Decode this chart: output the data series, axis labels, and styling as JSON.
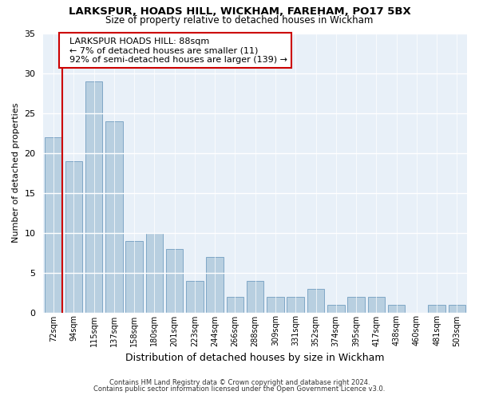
{
  "title1": "LARKSPUR, HOADS HILL, WICKHAM, FAREHAM, PO17 5BX",
  "title2": "Size of property relative to detached houses in Wickham",
  "xlabel": "Distribution of detached houses by size in Wickham",
  "ylabel": "Number of detached properties",
  "categories": [
    "72sqm",
    "94sqm",
    "115sqm",
    "137sqm",
    "158sqm",
    "180sqm",
    "201sqm",
    "223sqm",
    "244sqm",
    "266sqm",
    "288sqm",
    "309sqm",
    "331sqm",
    "352sqm",
    "374sqm",
    "395sqm",
    "417sqm",
    "438sqm",
    "460sqm",
    "481sqm",
    "503sqm"
  ],
  "values": [
    22,
    19,
    29,
    24,
    9,
    10,
    8,
    4,
    7,
    2,
    4,
    2,
    2,
    3,
    1,
    2,
    2,
    1,
    0,
    1,
    1
  ],
  "bar_color": "#b8cfe0",
  "highlight_line_color": "#cc0000",
  "annotation_title": "LARKSPUR HOADS HILL: 88sqm",
  "annotation_line1": "← 7% of detached houses are smaller (11)",
  "annotation_line2": "92% of semi-detached houses are larger (139) →",
  "annotation_box_color": "#ffffff",
  "annotation_box_edge_color": "#cc0000",
  "ylim": [
    0,
    35
  ],
  "yticks": [
    0,
    5,
    10,
    15,
    20,
    25,
    30,
    35
  ],
  "footnote1": "Contains HM Land Registry data © Crown copyright and database right 2024.",
  "footnote2": "Contains public sector information licensed under the Open Government Licence v3.0.",
  "bg_color": "#ffffff",
  "plot_bg_color": "#e8f0f8"
}
